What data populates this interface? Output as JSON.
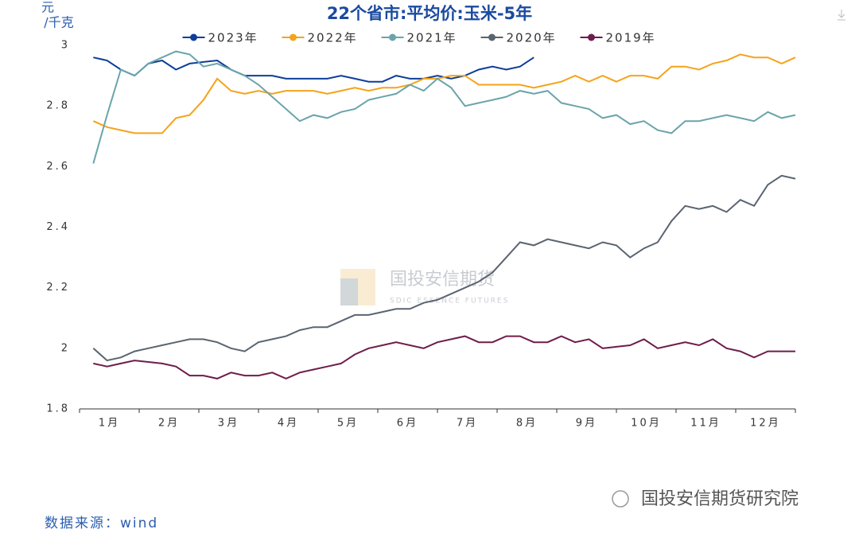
{
  "chart_data": {
    "type": "line",
    "title": "22个省市:平均价:玉米-5年",
    "y_unit": [
      "元",
      "/千克"
    ],
    "source": "数据来源：wind",
    "watermark": [
      "国投安信期货",
      "SDIC ESSENCE FUTURES"
    ],
    "brand": "国投安信期货研究院",
    "x": [
      1,
      2,
      3,
      4,
      5,
      6,
      7,
      8,
      9,
      10,
      11,
      12,
      13,
      14,
      15,
      16,
      17,
      18,
      19,
      20,
      21,
      22,
      23,
      24,
      25,
      26,
      27,
      28,
      29,
      30,
      31,
      32,
      33,
      34,
      35,
      36,
      37,
      38,
      39,
      40,
      41,
      42,
      43,
      44,
      45,
      46,
      47,
      48,
      49,
      50,
      51,
      52
    ],
    "xlim": [
      0,
      52
    ],
    "xticks": [
      {
        "value": 2.17,
        "label": "1月"
      },
      {
        "value": 6.5,
        "label": "2月"
      },
      {
        "value": 10.83,
        "label": "3月"
      },
      {
        "value": 15.17,
        "label": "4月"
      },
      {
        "value": 19.5,
        "label": "5月"
      },
      {
        "value": 23.83,
        "label": "6月"
      },
      {
        "value": 28.17,
        "label": "7月"
      },
      {
        "value": 32.5,
        "label": "8月"
      },
      {
        "value": 36.83,
        "label": "9月"
      },
      {
        "value": 41.17,
        "label": "10月"
      },
      {
        "value": 45.5,
        "label": "11月"
      },
      {
        "value": 49.83,
        "label": "12月"
      }
    ],
    "ylim": [
      1.8,
      3
    ],
    "yticks": [
      1.8,
      2,
      2.2,
      2.4,
      2.6,
      2.8,
      3
    ],
    "legend": "top",
    "series": [
      {
        "name": "2023年",
        "color": "#0d3e99",
        "values": [
          2.96,
          2.95,
          2.92,
          2.9,
          2.94,
          2.95,
          2.92,
          2.94,
          2.945,
          2.95,
          2.92,
          2.9,
          2.9,
          2.9,
          2.89,
          2.89,
          2.89,
          2.89,
          2.9,
          2.89,
          2.88,
          2.88,
          2.9,
          2.89,
          2.89,
          2.9,
          2.89,
          2.9,
          2.92,
          2.93,
          2.92,
          2.93,
          2.96,
          null,
          null,
          null,
          null,
          null,
          null,
          null,
          null,
          null,
          null,
          null,
          null,
          null,
          null,
          null,
          null,
          null,
          null,
          null
        ]
      },
      {
        "name": "2022年",
        "color": "#f5a31a",
        "values": [
          2.75,
          2.73,
          2.72,
          2.71,
          2.71,
          2.71,
          2.76,
          2.77,
          2.82,
          2.89,
          2.85,
          2.84,
          2.85,
          2.84,
          2.85,
          2.85,
          2.85,
          2.84,
          2.85,
          2.86,
          2.85,
          2.86,
          2.86,
          2.87,
          2.89,
          2.89,
          2.9,
          2.9,
          2.87,
          2.87,
          2.87,
          2.87,
          2.86,
          2.87,
          2.88,
          2.9,
          2.88,
          2.9,
          2.88,
          2.9,
          2.9,
          2.89,
          2.93,
          2.93,
          2.92,
          2.94,
          2.95,
          2.97,
          2.96,
          2.96,
          2.94,
          2.96
        ]
      },
      {
        "name": "2021年",
        "color": "#6aa4ac",
        "values": [
          2.61,
          2.77,
          2.92,
          2.9,
          2.94,
          2.96,
          2.98,
          2.97,
          2.93,
          2.94,
          2.92,
          2.9,
          2.87,
          2.83,
          2.79,
          2.75,
          2.77,
          2.76,
          2.78,
          2.79,
          2.82,
          2.83,
          2.84,
          2.87,
          2.85,
          2.89,
          2.86,
          2.8,
          2.81,
          2.82,
          2.83,
          2.85,
          2.84,
          2.85,
          2.81,
          2.8,
          2.79,
          2.76,
          2.77,
          2.74,
          2.75,
          2.72,
          2.71,
          2.75,
          2.75,
          2.76,
          2.77,
          2.76,
          2.75,
          2.78,
          2.76,
          2.77
        ]
      },
      {
        "name": "2020年",
        "color": "#5a6470",
        "values": [
          2,
          1.96,
          1.97,
          1.99,
          2,
          2.01,
          2.02,
          2.03,
          2.03,
          2.02,
          2,
          1.99,
          2.02,
          2.03,
          2.04,
          2.06,
          2.07,
          2.07,
          2.09,
          2.11,
          2.11,
          2.12,
          2.13,
          2.13,
          2.15,
          2.16,
          2.18,
          2.2,
          2.22,
          2.25,
          2.3,
          2.35,
          2.34,
          2.36,
          2.35,
          2.34,
          2.33,
          2.35,
          2.34,
          2.3,
          2.33,
          2.35,
          2.42,
          2.47,
          2.46,
          2.47,
          2.45,
          2.49,
          2.47,
          2.54,
          2.57,
          2.56
        ]
      },
      {
        "name": "2019年",
        "color": "#6e1d4a",
        "values": [
          1.95,
          1.94,
          1.95,
          1.96,
          1.955,
          1.95,
          1.94,
          1.91,
          1.91,
          1.9,
          1.92,
          1.91,
          1.91,
          1.92,
          1.9,
          1.92,
          1.93,
          1.94,
          1.95,
          1.98,
          2,
          2.01,
          2.02,
          2.01,
          2,
          2.02,
          2.03,
          2.04,
          2.02,
          2.02,
          2.04,
          2.04,
          2.02,
          2.02,
          2.04,
          2.02,
          2.03,
          2,
          2.005,
          2.01,
          2.03,
          2,
          2.01,
          2.02,
          2.01,
          2.03,
          2,
          1.99,
          1.97,
          1.99,
          1.99,
          1.99
        ]
      }
    ]
  }
}
